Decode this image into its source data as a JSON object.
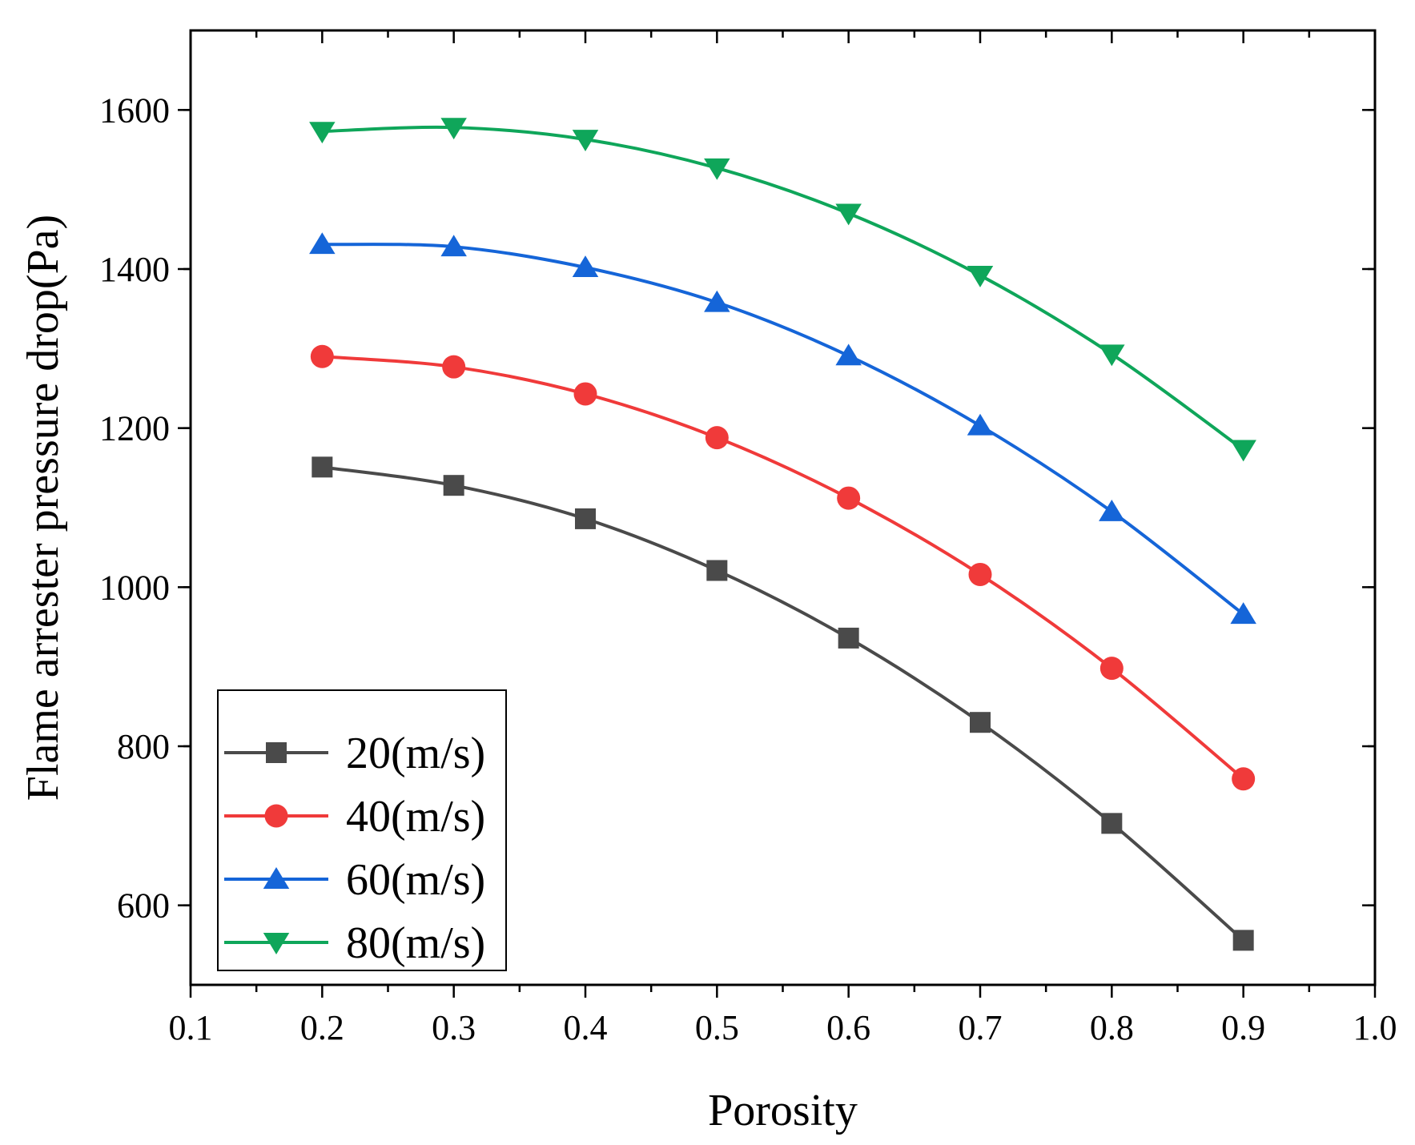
{
  "chart_data": {
    "type": "line",
    "title": "",
    "xlabel": "Porosity",
    "ylabel": "Flame arrester pressure drop(Pa)",
    "xlim": [
      0.1,
      1.0
    ],
    "ylim": [
      500,
      1700
    ],
    "x_ticks": [
      0.1,
      0.2,
      0.3,
      0.4,
      0.5,
      0.6,
      0.7,
      0.8,
      0.9,
      1.0
    ],
    "x_tick_labels": [
      "0.1",
      "0.2",
      "0.3",
      "0.4",
      "0.5",
      "0.6",
      "0.7",
      "0.8",
      "0.9",
      "1.0"
    ],
    "y_ticks": [
      600,
      800,
      1000,
      1200,
      1400,
      1600
    ],
    "y_tick_labels": [
      "600",
      "800",
      "1000",
      "1200",
      "1400",
      "1600"
    ],
    "grid": false,
    "legend_position": "bottom-left",
    "x": [
      0.2,
      0.3,
      0.4,
      0.5,
      0.6,
      0.7,
      0.8,
      0.9
    ],
    "series": [
      {
        "name": "20(m/s)",
        "color": "#4a4a4a",
        "marker": "square",
        "values": [
          1151,
          1128,
          1086,
          1021,
          936,
          830,
          703,
          556
        ]
      },
      {
        "name": "40(m/s)",
        "color": "#f03a3a",
        "marker": "circle",
        "values": [
          1290,
          1277,
          1243,
          1188,
          1112,
          1016,
          898,
          759
        ]
      },
      {
        "name": "60(m/s)",
        "color": "#1565d8",
        "marker": "triangle-up",
        "values": [
          1431,
          1428,
          1402,
          1358,
          1291,
          1203,
          1095,
          966
        ]
      },
      {
        "name": "80(m/s)",
        "color": "#0fa65a",
        "marker": "triangle-down",
        "values": [
          1573,
          1578,
          1563,
          1527,
          1470,
          1392,
          1293,
          1173
        ]
      }
    ]
  }
}
